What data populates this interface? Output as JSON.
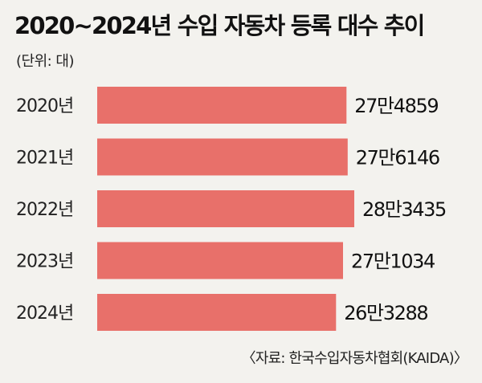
{
  "title": "2020~2024년 수입 자동차 등록 대수 추이",
  "unit_label": "(단위: 대)",
  "source": "〈자료: 한국수입자동차협회(KAIDA)〉",
  "colors": {
    "background": "#f3f2ee",
    "bar": "#e8706a",
    "text": "#111111"
  },
  "chart_data": {
    "type": "bar",
    "orientation": "horizontal",
    "title": "2020~2024년 수입 자동차 등록 대수 추이",
    "xlabel": "",
    "ylabel": "",
    "categories": [
      "2020년",
      "2021년",
      "2022년",
      "2023년",
      "2024년"
    ],
    "values": [
      274859,
      276146,
      283435,
      271034,
      263288
    ],
    "data_labels": [
      "27만4859",
      "27만6146",
      "28만3435",
      "27만1034",
      "26만3288"
    ],
    "grid": false,
    "legend": "none"
  }
}
